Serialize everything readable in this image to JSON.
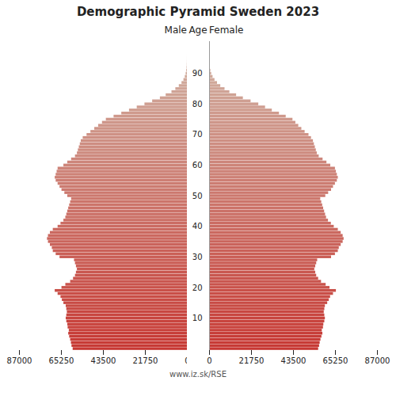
{
  "chart_data": {
    "type": "bar",
    "orientation": "horizontal",
    "title": "Demographic Pyramid Sweden 2023",
    "ylabel": "Age",
    "annotations": [
      "www.iz.sk/RSE"
    ],
    "xlim": [
      0,
      87000
    ],
    "xticks": [
      0,
      21750,
      43500,
      65250,
      87000
    ],
    "ylim": [
      -0.5,
      100.5
    ],
    "yticks": [
      10,
      20,
      30,
      40,
      50,
      60,
      70,
      80,
      90
    ],
    "categories": [
      0,
      1,
      2,
      3,
      4,
      5,
      6,
      7,
      8,
      9,
      10,
      11,
      12,
      13,
      14,
      15,
      16,
      17,
      18,
      19,
      20,
      21,
      22,
      23,
      24,
      25,
      26,
      27,
      28,
      29,
      30,
      31,
      32,
      33,
      34,
      35,
      36,
      37,
      38,
      39,
      40,
      41,
      42,
      43,
      44,
      45,
      46,
      47,
      48,
      49,
      50,
      51,
      52,
      53,
      54,
      55,
      56,
      57,
      58,
      59,
      60,
      61,
      62,
      63,
      64,
      65,
      66,
      67,
      68,
      69,
      70,
      71,
      72,
      73,
      74,
      75,
      76,
      77,
      78,
      79,
      80,
      81,
      82,
      83,
      84,
      85,
      86,
      87,
      88,
      89,
      90,
      91,
      92,
      93,
      94,
      95,
      96,
      97,
      98,
      99,
      100
    ],
    "series": [
      {
        "name": "Male",
        "values": [
          59200,
          59800,
          60100,
          60500,
          61000,
          61500,
          61200,
          61800,
          62000,
          62500,
          62800,
          62500,
          62200,
          62500,
          62800,
          64000,
          64800,
          65500,
          67000,
          68500,
          65000,
          63000,
          60500,
          59000,
          58000,
          57500,
          57000,
          57500,
          58000,
          58500,
          66000,
          68000,
          69500,
          70000,
          71000,
          72000,
          72500,
          72000,
          71000,
          69500,
          67000,
          65500,
          64000,
          63000,
          62500,
          62000,
          61500,
          61000,
          60500,
          60000,
          62000,
          63500,
          65000,
          66000,
          67000,
          68000,
          68500,
          68000,
          67500,
          67000,
          64000,
          62000,
          60000,
          58000,
          57000,
          56500,
          56000,
          55500,
          55000,
          54000,
          52000,
          50000,
          48000,
          46000,
          44000,
          42000,
          38000,
          34000,
          30000,
          26000,
          22000,
          18000,
          14000,
          11000,
          8000,
          6000,
          4200,
          2800,
          1800,
          1100,
          650,
          350,
          180,
          90,
          40,
          20,
          8,
          3,
          1,
          1,
          1
        ],
        "colors": [
          "#c73833",
          "#c73934",
          "#c73b35",
          "#c73c37",
          "#c73d38",
          "#c73e39",
          "#c8403a",
          "#c8413b",
          "#c8423c",
          "#c8443e",
          "#c8453f",
          "#c84640",
          "#c84741",
          "#c84942",
          "#c84a43",
          "#c84b45",
          "#c94c46",
          "#c94e47",
          "#c94f48",
          "#c95049",
          "#c9524a",
          "#c9534c",
          "#c9544d",
          "#c9554e",
          "#c9574f",
          "#c95850",
          "#ca5951",
          "#ca5b53",
          "#ca5c54",
          "#ca5d55",
          "#ca5e56",
          "#ca6057",
          "#ca6159",
          "#ca625a",
          "#ca635b",
          "#ca655c",
          "#cb665d",
          "#cb675e",
          "#cb6960",
          "#cb6a61",
          "#cb6b62",
          "#cb6c63",
          "#cb6e64",
          "#cb6f65",
          "#cb7067",
          "#cb7168",
          "#cc7369",
          "#cc746a",
          "#cc756b",
          "#cc776c",
          "#cc786e",
          "#cc796f",
          "#cc7a70",
          "#cc7c71",
          "#cc7d72",
          "#cd7e74",
          "#cd8075",
          "#cd8176",
          "#cd8277",
          "#cd8378",
          "#cd8579",
          "#cd867b",
          "#cd877c",
          "#cd887d",
          "#cd8a7e",
          "#ce8b7f",
          "#ce8c80",
          "#ce8e82",
          "#ce8f83",
          "#ce9084",
          "#ce9185",
          "#ce9386",
          "#ce9487",
          "#ce9589",
          "#ce968a",
          "#cf988b",
          "#cf998c",
          "#cf9a8d",
          "#cf9c8e",
          "#cf9d90",
          "#cf9e91",
          "#cf9f92",
          "#cfa193",
          "#cfa294",
          "#cfa396",
          "#d0a497",
          "#d0a698",
          "#d0a799",
          "#d0a89a",
          "#d0aa9b",
          "#d0ab9d",
          "#d0ac9e",
          "#d0ad9f",
          "#d0afa0",
          "#d0b0a1",
          "#d1b1a2",
          "#d1b2a4",
          "#d1b4a5",
          "#d1b5a6",
          "#d1b6a7",
          "#d1b8a8"
        ]
      },
      {
        "name": "Female",
        "values": [
          56500,
          57000,
          57300,
          57700,
          58200,
          58700,
          58400,
          59000,
          59200,
          59700,
          60000,
          59700,
          59400,
          59700,
          60000,
          61200,
          62000,
          62700,
          64200,
          65700,
          62400,
          60400,
          58000,
          56500,
          55500,
          55000,
          54500,
          55000,
          55500,
          56000,
          63200,
          65200,
          66700,
          67200,
          68200,
          69200,
          69700,
          69200,
          68200,
          66700,
          64600,
          63100,
          61600,
          60600,
          60100,
          59600,
          59100,
          58600,
          58100,
          57600,
          60200,
          61700,
          63200,
          64200,
          65200,
          66200,
          66700,
          66200,
          65700,
          65200,
          62800,
          60800,
          58800,
          56800,
          55800,
          55300,
          54800,
          54300,
          53800,
          52800,
          51500,
          49500,
          47800,
          46200,
          44700,
          43200,
          39700,
          36200,
          32500,
          29000,
          25500,
          21500,
          17500,
          14000,
          10500,
          8000,
          5800,
          4100,
          2800,
          1800,
          1100,
          650,
          350,
          180,
          85,
          40,
          16,
          6,
          2,
          1,
          1
        ],
        "colors": [
          "#c73833",
          "#c73934",
          "#c73b35",
          "#c73c37",
          "#c73d38",
          "#c73e39",
          "#c8403a",
          "#c8413b",
          "#c8423c",
          "#c8443e",
          "#c8453f",
          "#c84640",
          "#c84741",
          "#c84942",
          "#c84a43",
          "#c84b45",
          "#c94c46",
          "#c94e47",
          "#c94f48",
          "#c95049",
          "#c9524a",
          "#c9534c",
          "#c9544d",
          "#c9554e",
          "#c9574f",
          "#c95850",
          "#ca5951",
          "#ca5b53",
          "#ca5c54",
          "#ca5d55",
          "#ca5e56",
          "#ca6057",
          "#ca6159",
          "#ca625a",
          "#ca635b",
          "#ca655c",
          "#cb665d",
          "#cb675e",
          "#cb6960",
          "#cb6a61",
          "#cb6b62",
          "#cb6c63",
          "#cb6e64",
          "#cb6f65",
          "#cb7067",
          "#cb7168",
          "#cc7369",
          "#cc746a",
          "#cc756b",
          "#cc776c",
          "#cc786e",
          "#cc796f",
          "#cc7a70",
          "#cc7c71",
          "#cc7d72",
          "#cd7e74",
          "#cd8075",
          "#cd8176",
          "#cd8277",
          "#cd8378",
          "#cd8579",
          "#cd867b",
          "#cd877c",
          "#cd887d",
          "#cd8a7e",
          "#ce8b7f",
          "#ce8c80",
          "#ce8e82",
          "#ce8f83",
          "#ce9084",
          "#ce9185",
          "#ce9386",
          "#ce9487",
          "#ce9589",
          "#ce968a",
          "#cf988b",
          "#cf998c",
          "#cf9a8d",
          "#cf9c8e",
          "#cf9d90",
          "#cf9e91",
          "#cf9f92",
          "#cfa193",
          "#cfa294",
          "#cfa396",
          "#d0a497",
          "#d0a698",
          "#d0a799",
          "#d0a89a",
          "#d0aa9b",
          "#d0ab9d",
          "#d0ac9e",
          "#d0ad9f",
          "#d0afa0",
          "#d0b0a1",
          "#d1b1a2",
          "#d1b2a4",
          "#d1b4a5",
          "#d1b5a6",
          "#d1b6a7",
          "#d1b8a8"
        ]
      }
    ]
  }
}
